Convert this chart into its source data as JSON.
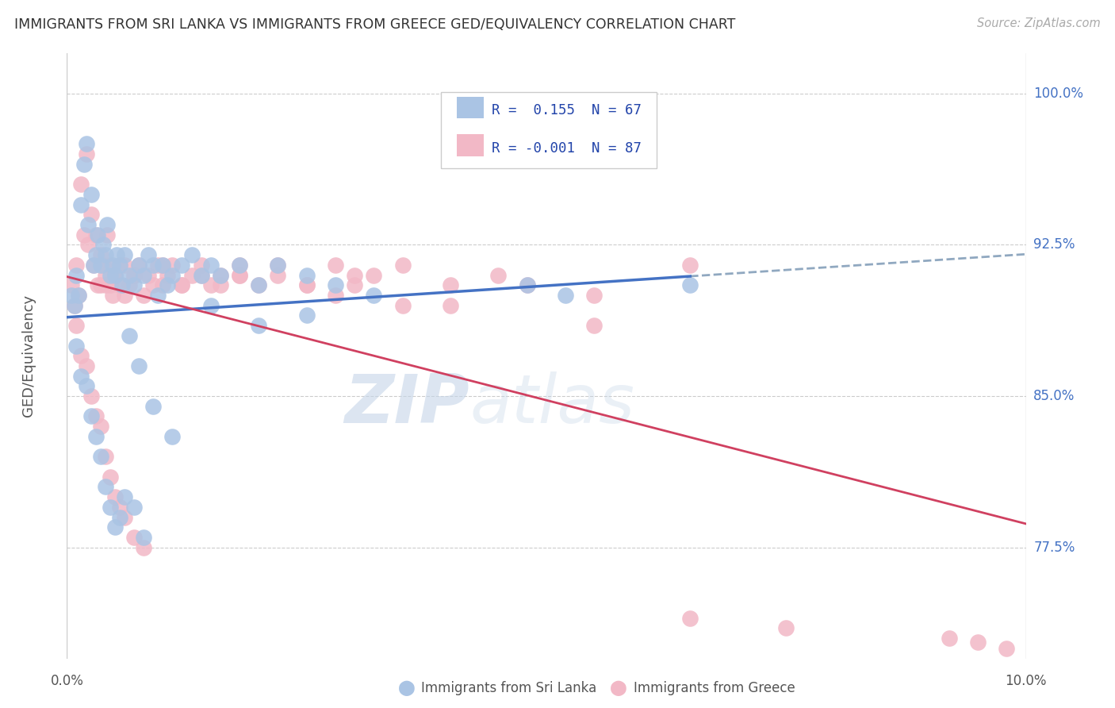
{
  "title": "IMMIGRANTS FROM SRI LANKA VS IMMIGRANTS FROM GREECE GED/EQUIVALENCY CORRELATION CHART",
  "source": "Source: ZipAtlas.com",
  "ylabel": "GED/Equivalency",
  "r_sri_lanka": 0.155,
  "n_sri_lanka": 67,
  "r_greece": -0.001,
  "n_greece": 87,
  "x_min": 0.0,
  "x_max": 10.0,
  "y_min": 72.0,
  "y_max": 102.0,
  "y_ticks": [
    77.5,
    85.0,
    92.5,
    100.0
  ],
  "color_sri_lanka_fill": "#aac4e4",
  "color_greece_fill": "#f2b8c6",
  "line_color_sri_lanka": "#4472c4",
  "line_color_greece": "#d04060",
  "line_color_dashed": "#90a8c0",
  "background_color": "#ffffff",
  "watermark_zip": "ZIP",
  "watermark_atlas": "atlas",
  "sri_lanka_x": [
    0.05,
    0.08,
    0.1,
    0.12,
    0.15,
    0.18,
    0.2,
    0.22,
    0.25,
    0.28,
    0.3,
    0.32,
    0.35,
    0.38,
    0.4,
    0.42,
    0.45,
    0.48,
    0.5,
    0.52,
    0.55,
    0.58,
    0.6,
    0.65,
    0.7,
    0.75,
    0.8,
    0.85,
    0.9,
    0.95,
    1.0,
    1.05,
    1.1,
    1.2,
    1.3,
    1.4,
    1.5,
    1.6,
    1.8,
    2.0,
    2.2,
    2.5,
    2.8,
    3.2,
    0.1,
    0.15,
    0.2,
    0.25,
    0.3,
    0.35,
    0.4,
    0.45,
    0.5,
    0.55,
    0.6,
    0.7,
    0.8,
    4.8,
    5.2,
    6.5,
    1.5,
    2.0,
    2.5,
    0.65,
    0.75,
    0.9,
    1.1
  ],
  "sri_lanka_y": [
    90.0,
    89.5,
    91.0,
    90.0,
    94.5,
    96.5,
    97.5,
    93.5,
    95.0,
    91.5,
    92.0,
    93.0,
    91.5,
    92.5,
    92.0,
    93.5,
    91.0,
    91.5,
    91.0,
    92.0,
    91.5,
    90.5,
    92.0,
    91.0,
    90.5,
    91.5,
    91.0,
    92.0,
    91.5,
    90.0,
    91.5,
    90.5,
    91.0,
    91.5,
    92.0,
    91.0,
    91.5,
    91.0,
    91.5,
    90.5,
    91.5,
    91.0,
    90.5,
    90.0,
    87.5,
    86.0,
    85.5,
    84.0,
    83.0,
    82.0,
    80.5,
    79.5,
    78.5,
    79.0,
    80.0,
    79.5,
    78.0,
    90.5,
    90.0,
    90.5,
    89.5,
    88.5,
    89.0,
    88.0,
    86.5,
    84.5,
    83.0
  ],
  "greece_x": [
    0.05,
    0.08,
    0.1,
    0.12,
    0.15,
    0.18,
    0.2,
    0.22,
    0.25,
    0.28,
    0.3,
    0.32,
    0.35,
    0.38,
    0.4,
    0.42,
    0.45,
    0.48,
    0.5,
    0.55,
    0.6,
    0.65,
    0.7,
    0.75,
    0.8,
    0.85,
    0.9,
    0.95,
    1.0,
    1.05,
    1.1,
    1.2,
    1.3,
    1.4,
    1.5,
    1.6,
    1.8,
    2.0,
    2.2,
    2.5,
    2.8,
    3.0,
    0.1,
    0.15,
    0.2,
    0.25,
    0.3,
    0.35,
    0.4,
    0.45,
    0.5,
    0.55,
    0.6,
    0.7,
    0.8,
    3.5,
    4.0,
    4.5,
    5.5,
    6.5,
    9.8,
    0.35,
    0.4,
    0.45,
    0.5,
    0.55,
    0.6,
    0.7,
    1.0,
    1.2,
    1.4,
    1.6,
    1.8,
    3.0,
    3.5,
    2.5,
    1.8,
    2.2,
    2.8,
    3.2,
    4.0,
    4.8,
    5.5,
    6.5,
    7.5,
    9.2,
    9.5
  ],
  "greece_y": [
    90.5,
    89.5,
    91.5,
    90.0,
    95.5,
    93.0,
    97.0,
    92.5,
    94.0,
    91.5,
    93.0,
    90.5,
    92.0,
    91.5,
    90.5,
    93.0,
    91.5,
    90.0,
    91.0,
    90.5,
    91.5,
    90.5,
    91.0,
    91.5,
    90.0,
    91.0,
    90.5,
    91.5,
    90.5,
    91.0,
    91.5,
    90.5,
    91.0,
    91.5,
    90.5,
    91.0,
    91.5,
    90.5,
    91.0,
    90.5,
    91.5,
    90.5,
    88.5,
    87.0,
    86.5,
    85.0,
    84.0,
    83.5,
    82.0,
    81.0,
    80.0,
    79.5,
    79.0,
    78.0,
    77.5,
    91.5,
    90.5,
    91.0,
    90.0,
    91.5,
    72.5,
    90.5,
    91.0,
    90.5,
    91.0,
    91.5,
    90.0,
    91.0,
    91.5,
    90.5,
    91.0,
    90.5,
    91.0,
    91.0,
    89.5,
    90.5,
    91.0,
    91.5,
    90.0,
    91.0,
    89.5,
    90.5,
    88.5,
    74.0,
    73.5,
    73.0,
    72.8
  ]
}
